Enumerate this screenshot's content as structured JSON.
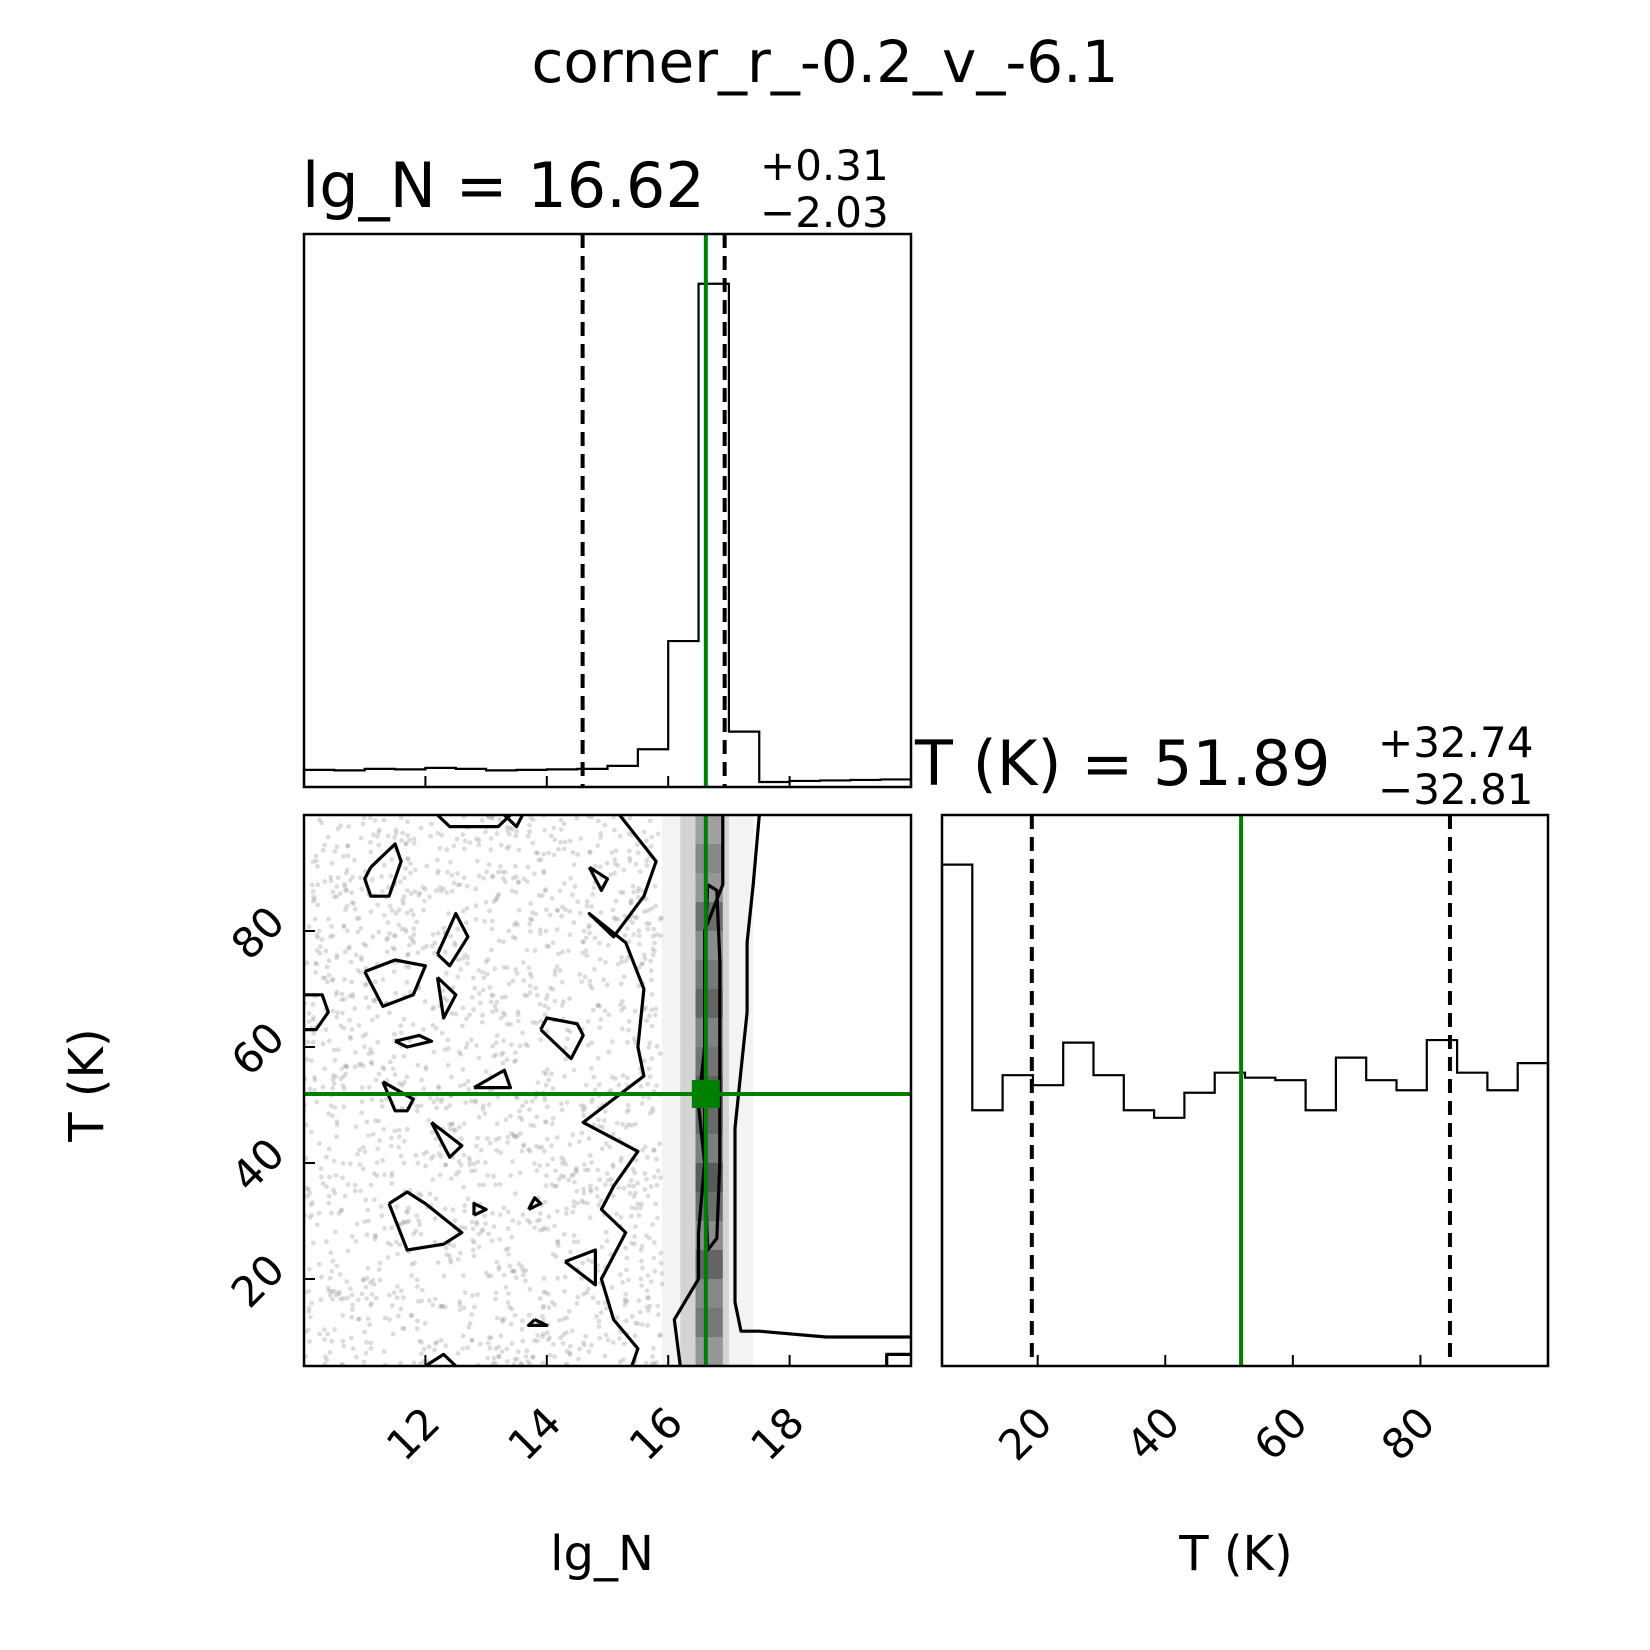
{
  "colors": {
    "truth": "#008000",
    "ink": "#000000",
    "scatter": "#9a9a9a"
  },
  "chart_data": {
    "type": "corner",
    "title": "corner_r_-0.2_v_-6.1",
    "params": [
      {
        "name": "lg_N",
        "axis_label": "lg_N",
        "range": [
          10,
          20
        ],
        "ticks": [
          "12",
          "14",
          "16",
          "18"
        ]
      },
      {
        "name": "T (K)",
        "axis_label": "T (K)",
        "range": [
          5,
          100
        ],
        "ticks": [
          "20",
          "40",
          "60",
          "80"
        ]
      }
    ],
    "lgN_title": {
      "prefix": "lg_N = ",
      "value": "16.62",
      "plus": "+0.31",
      "minus": "−2.03"
    },
    "T_title": {
      "prefix": "T (K) = ",
      "value": "51.89",
      "plus": "+32.74",
      "minus": "−32.81"
    },
    "lgN_hist": {
      "bin_edges": [
        10.0,
        10.5,
        11.0,
        11.5,
        12.0,
        12.5,
        13.0,
        13.5,
        14.0,
        14.5,
        15.0,
        15.5,
        16.0,
        16.5,
        17.0,
        17.5,
        18.0,
        18.5,
        19.0,
        19.5,
        20.0
      ],
      "counts": [
        34,
        33,
        36,
        35,
        38,
        36,
        33,
        34,
        35,
        36,
        42,
        75,
        290,
        1000,
        110,
        10,
        12,
        13,
        14,
        15
      ],
      "quantiles": [
        14.59,
        16.93
      ],
      "truth": 16.62
    },
    "T_hist": {
      "bin_edges": [
        5.0,
        9.75,
        14.5,
        19.25,
        24.0,
        28.75,
        33.5,
        38.25,
        43.0,
        47.75,
        52.5,
        57.25,
        62.0,
        66.75,
        71.5,
        76.25,
        81.0,
        85.75,
        90.5,
        95.25,
        100.0
      ],
      "counts": [
        1000,
        510,
        580,
        560,
        645,
        580,
        510,
        495,
        545,
        585,
        575,
        570,
        510,
        615,
        570,
        550,
        650,
        585,
        550,
        604
      ],
      "quantiles": [
        19.08,
        84.63
      ],
      "truth": 51.89
    },
    "joint": {
      "x_truth": 16.62,
      "y_truth": 51.89,
      "n_scatter_points": 1800
    }
  }
}
